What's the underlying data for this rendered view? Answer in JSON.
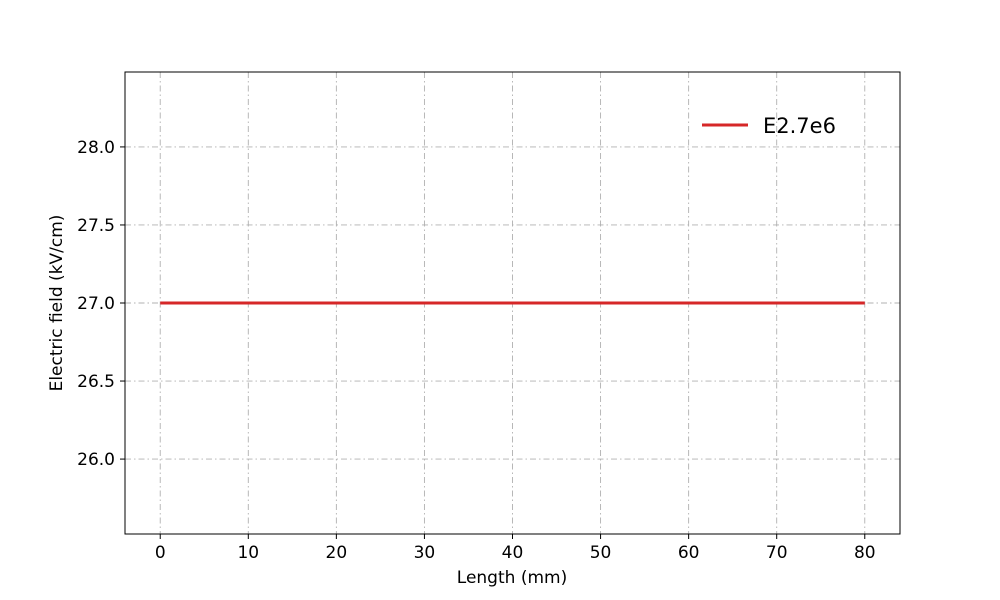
{
  "chart_data": {
    "type": "line",
    "title": "",
    "xlabel": "Length (mm)",
    "ylabel": "Electric field (kV/cm)",
    "xlim": [
      -4,
      84
    ],
    "ylim": [
      25.52,
      28.48
    ],
    "xticks": [
      0,
      10,
      20,
      30,
      40,
      50,
      60,
      70,
      80
    ],
    "xtick_labels": [
      "0",
      "10",
      "20",
      "30",
      "40",
      "50",
      "60",
      "70",
      "80"
    ],
    "yticks": [
      26.0,
      26.5,
      27.0,
      27.5,
      28.0
    ],
    "ytick_labels": [
      "26.0",
      "26.5",
      "27.0",
      "27.5",
      "28.0"
    ],
    "grid": true,
    "legend_position": "top-right",
    "series": [
      {
        "name": "E2.7e6",
        "color": "#d62728",
        "x": [
          0,
          80
        ],
        "y": [
          27.0,
          27.0
        ]
      }
    ]
  }
}
